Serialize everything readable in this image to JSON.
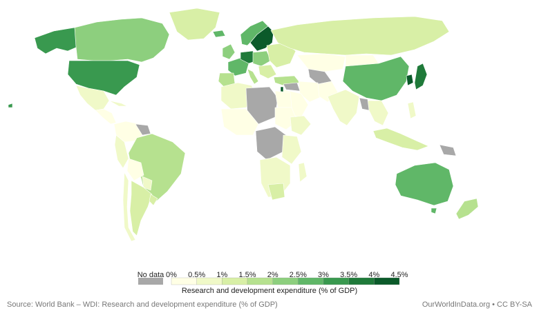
{
  "legend": {
    "title": "Research and development expenditure (% of GDP)",
    "no_data_label": "No data",
    "no_data_color": "#a8a8a8",
    "tick_labels": [
      "0%",
      "0.5%",
      "1%",
      "1.5%",
      "2%",
      "2.5%",
      "3%",
      "3.5%",
      "4%",
      "4.5%"
    ],
    "bin_colors": [
      "#ffffe5",
      "#f0f9c8",
      "#d8efa6",
      "#b6e18f",
      "#8dcf7e",
      "#60b768",
      "#39994f",
      "#1f7a3a",
      "#0b5a2a"
    ]
  },
  "footer": {
    "source": "Source: World Bank – WDI: Research and development expenditure (% of GDP)",
    "credit": "OurWorldInData.org • CC BY-SA"
  }
}
